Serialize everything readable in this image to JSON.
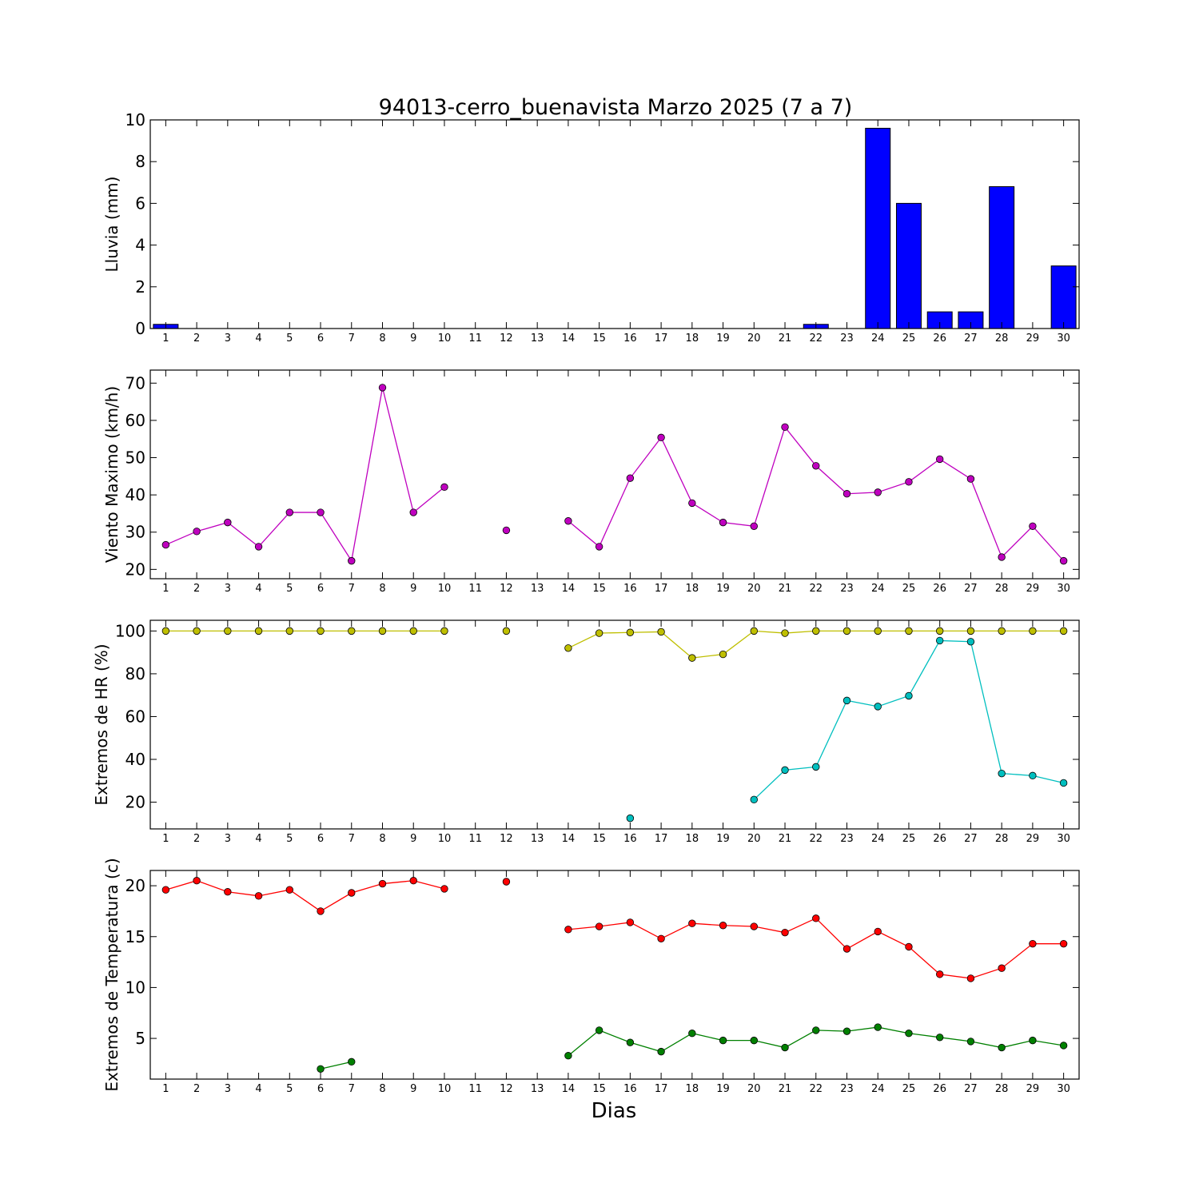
{
  "title": "94013-cerro_buenavista Marzo 2025  (7 a 7)",
  "xlabel": "Dias",
  "chart_data": [
    {
      "type": "bar",
      "ylabel": "Lluvia (mm)",
      "ylim": [
        0,
        10
      ],
      "yticks": [
        0,
        2,
        4,
        6,
        8,
        10
      ],
      "categories": [
        1,
        2,
        3,
        4,
        5,
        6,
        7,
        8,
        9,
        10,
        11,
        12,
        13,
        14,
        15,
        16,
        17,
        18,
        19,
        20,
        21,
        22,
        23,
        24,
        25,
        26,
        27,
        28,
        29,
        30
      ],
      "series": [
        {
          "color": "#0000ff",
          "values": [
            0.2,
            0,
            0,
            0,
            0,
            0,
            0,
            0,
            0,
            0,
            0,
            0,
            0,
            0,
            0,
            0,
            0,
            0,
            0,
            0,
            0,
            0.2,
            null,
            9.6,
            6.0,
            0.8,
            0.8,
            6.8,
            null,
            3.0
          ]
        }
      ]
    },
    {
      "type": "line",
      "ylabel": "Viento Maximo (km/h)",
      "ylim": [
        17.5,
        73.5
      ],
      "yticks": [
        20,
        30,
        40,
        50,
        60,
        70
      ],
      "x": [
        1,
        2,
        3,
        4,
        5,
        6,
        7,
        8,
        9,
        10,
        11,
        12,
        13,
        14,
        15,
        16,
        17,
        18,
        19,
        20,
        21,
        22,
        23,
        24,
        25,
        26,
        27,
        28,
        29,
        30
      ],
      "series": [
        {
          "color": "#bf00bf",
          "values": [
            26.6,
            30.2,
            32.6,
            26.1,
            35.3,
            35.3,
            22.3,
            68.8,
            35.3,
            42.1,
            null,
            30.5,
            null,
            33.0,
            26.1,
            44.5,
            55.4,
            37.8,
            32.6,
            31.6,
            58.2,
            47.8,
            40.3,
            40.7,
            43.5,
            49.6,
            44.3,
            23.3,
            31.6,
            22.3
          ]
        }
      ]
    },
    {
      "type": "line",
      "ylabel": "Extremos de HR (%)",
      "ylim": [
        7.5,
        105
      ],
      "yticks": [
        20,
        40,
        60,
        80,
        100
      ],
      "x": [
        1,
        2,
        3,
        4,
        5,
        6,
        7,
        8,
        9,
        10,
        11,
        12,
        13,
        14,
        15,
        16,
        17,
        18,
        19,
        20,
        21,
        22,
        23,
        24,
        25,
        26,
        27,
        28,
        29,
        30
      ],
      "series": [
        {
          "color": "#bfbf00",
          "values": [
            100,
            100,
            100,
            100,
            100,
            100,
            100,
            100,
            100,
            100,
            null,
            100,
            null,
            92,
            99,
            99.3,
            99.6,
            87.4,
            89.1,
            100,
            99,
            100,
            100,
            100,
            100,
            100,
            100,
            100,
            100,
            100
          ]
        },
        {
          "color": "#00bfbf",
          "values": [
            null,
            null,
            null,
            null,
            null,
            null,
            null,
            null,
            null,
            null,
            null,
            null,
            null,
            null,
            null,
            12.5,
            null,
            null,
            null,
            21.2,
            35,
            36.5,
            67.5,
            64.7,
            69.7,
            95.5,
            95,
            33.4,
            32.4,
            29
          ]
        }
      ]
    },
    {
      "type": "line",
      "ylabel": "Extremos de Temperatura (c)",
      "ylim": [
        1,
        21.5
      ],
      "yticks": [
        5,
        10,
        15,
        20
      ],
      "x": [
        1,
        2,
        3,
        4,
        5,
        6,
        7,
        8,
        9,
        10,
        11,
        12,
        13,
        14,
        15,
        16,
        17,
        18,
        19,
        20,
        21,
        22,
        23,
        24,
        25,
        26,
        27,
        28,
        29,
        30
      ],
      "series": [
        {
          "color": "#ff0000",
          "values": [
            19.6,
            20.5,
            19.4,
            19.0,
            19.6,
            17.5,
            19.3,
            20.2,
            20.5,
            19.7,
            null,
            20.4,
            null,
            15.7,
            16.0,
            16.4,
            14.8,
            16.3,
            16.1,
            16.0,
            15.4,
            16.8,
            13.8,
            15.5,
            14.0,
            11.3,
            10.9,
            11.9,
            14.3,
            14.3
          ]
        },
        {
          "color": "#008000",
          "values": [
            null,
            null,
            null,
            null,
            null,
            2.0,
            2.7,
            null,
            null,
            null,
            null,
            null,
            null,
            3.3,
            5.8,
            4.6,
            3.7,
            5.5,
            4.8,
            4.8,
            4.1,
            5.8,
            5.7,
            6.1,
            5.5,
            5.1,
            4.7,
            4.1,
            4.8,
            4.3
          ]
        }
      ]
    }
  ]
}
